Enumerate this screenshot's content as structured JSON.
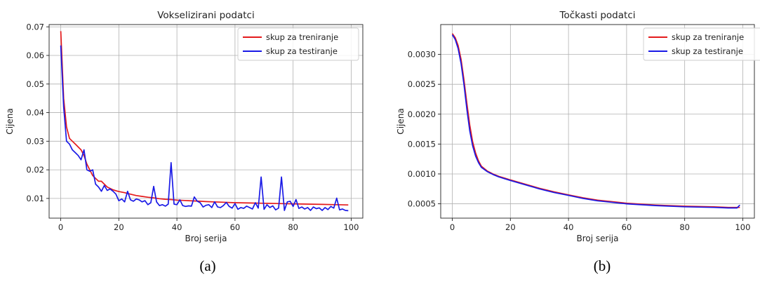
{
  "captions": [
    "(a)",
    "(b)"
  ],
  "colors": {
    "train": "#e41a1c",
    "test": "#1a1ae6",
    "grid": "#b0b0b0"
  },
  "chart_data": [
    {
      "type": "line",
      "title": "Vokselizirani podatci",
      "xlabel": "Broj serija",
      "ylabel": "Cijena",
      "xlim": [
        -4,
        104
      ],
      "ylim": [
        0.0031,
        0.0708
      ],
      "xticks": [
        0,
        20,
        40,
        60,
        80,
        100
      ],
      "yticks": [
        0.01,
        0.02,
        0.03,
        0.04,
        0.05,
        0.06,
        0.07
      ],
      "xtick_labels": [
        "0",
        "20",
        "40",
        "60",
        "80",
        "100"
      ],
      "ytick_labels": [
        "0.01",
        "0.02",
        "0.03",
        "0.04",
        "0.05",
        "0.06",
        "0.07"
      ],
      "grid": true,
      "legend": "top-right",
      "series": [
        {
          "name": "skup za treniranje",
          "color": "#e41a1c",
          "x": [
            0,
            1,
            2,
            3,
            4,
            5,
            6,
            7,
            8,
            9,
            10,
            11,
            12,
            13,
            14,
            15,
            16,
            17,
            18,
            19,
            20,
            22,
            24,
            26,
            28,
            30,
            32,
            34,
            36,
            38,
            40,
            42,
            44,
            46,
            48,
            50,
            55,
            60,
            65,
            70,
            75,
            80,
            85,
            90,
            95,
            99
          ],
          "y": [
            0.0685,
            0.045,
            0.035,
            0.031,
            0.03,
            0.029,
            0.028,
            0.027,
            0.025,
            0.022,
            0.02,
            0.018,
            0.017,
            0.016,
            0.016,
            0.015,
            0.014,
            0.0135,
            0.013,
            0.0127,
            0.0124,
            0.012,
            0.0115,
            0.011,
            0.0107,
            0.0104,
            0.0102,
            0.0099,
            0.0097,
            0.0096,
            0.0094,
            0.0093,
            0.0092,
            0.0091,
            0.009,
            0.0089,
            0.0087,
            0.0085,
            0.0084,
            0.0083,
            0.0082,
            0.0081,
            0.008,
            0.0079,
            0.0078,
            0.0077
          ]
        },
        {
          "name": "skup za testiranje",
          "color": "#1a1ae6",
          "x": [
            0,
            1,
            2,
            3,
            4,
            5,
            6,
            7,
            8,
            9,
            10,
            11,
            12,
            13,
            14,
            15,
            16,
            17,
            18,
            19,
            20,
            21,
            22,
            23,
            24,
            25,
            26,
            27,
            28,
            29,
            30,
            31,
            32,
            33,
            34,
            35,
            36,
            37,
            38,
            39,
            40,
            41,
            42,
            43,
            44,
            45,
            46,
            47,
            48,
            49,
            50,
            51,
            52,
            53,
            54,
            55,
            56,
            57,
            58,
            59,
            60,
            61,
            62,
            63,
            64,
            65,
            66,
            67,
            68,
            69,
            70,
            71,
            72,
            73,
            74,
            75,
            76,
            77,
            78,
            79,
            80,
            81,
            82,
            83,
            84,
            85,
            86,
            87,
            88,
            89,
            90,
            91,
            92,
            93,
            94,
            95,
            96,
            97,
            98,
            99
          ],
          "y": [
            0.0635,
            0.042,
            0.03,
            0.029,
            0.027,
            0.026,
            0.025,
            0.0235,
            0.027,
            0.02,
            0.0195,
            0.02,
            0.015,
            0.014,
            0.0125,
            0.0145,
            0.0128,
            0.0133,
            0.0125,
            0.0115,
            0.0092,
            0.0098,
            0.0088,
            0.0125,
            0.0095,
            0.009,
            0.0098,
            0.0095,
            0.0088,
            0.0092,
            0.0078,
            0.0085,
            0.0142,
            0.0088,
            0.0075,
            0.0078,
            0.0073,
            0.008,
            0.0225,
            0.008,
            0.0078,
            0.0095,
            0.0075,
            0.0072,
            0.0074,
            0.0073,
            0.0105,
            0.009,
            0.0085,
            0.007,
            0.0076,
            0.0078,
            0.0068,
            0.0088,
            0.007,
            0.0068,
            0.0075,
            0.0086,
            0.0072,
            0.0066,
            0.0082,
            0.0062,
            0.0068,
            0.0065,
            0.0073,
            0.0068,
            0.0063,
            0.0085,
            0.0066,
            0.0175,
            0.0062,
            0.0078,
            0.0068,
            0.0074,
            0.006,
            0.0066,
            0.0175,
            0.0058,
            0.0088,
            0.009,
            0.0072,
            0.0096,
            0.0065,
            0.007,
            0.0063,
            0.0068,
            0.0058,
            0.007,
            0.0064,
            0.0067,
            0.0058,
            0.0068,
            0.0061,
            0.0072,
            0.0066,
            0.0101,
            0.006,
            0.0063,
            0.0058,
            0.0057
          ]
        }
      ]
    },
    {
      "type": "line",
      "title": "Točkasti podatci",
      "xlabel": "Broj serija",
      "ylabel": "Cijena",
      "xlim": [
        -4,
        104
      ],
      "ylim": [
        0.00026,
        0.0035
      ],
      "xticks": [
        0,
        20,
        40,
        60,
        80,
        100
      ],
      "yticks": [
        0.0005,
        0.001,
        0.0015,
        0.002,
        0.0025,
        0.003
      ],
      "xtick_labels": [
        "0",
        "20",
        "40",
        "60",
        "80",
        "100"
      ],
      "ytick_labels": [
        "0.0005",
        "0.0010",
        "0.0015",
        "0.0020",
        "0.0025",
        "0.0030"
      ],
      "grid": true,
      "legend": "top-right",
      "series": [
        {
          "name": "skup za treniranje",
          "color": "#e41a1c",
          "x": [
            0,
            1,
            2,
            3,
            4,
            5,
            6,
            7,
            8,
            9,
            10,
            12,
            14,
            16,
            18,
            20,
            25,
            30,
            35,
            40,
            45,
            50,
            60,
            70,
            80,
            90,
            95,
            99
          ],
          "y": [
            0.00335,
            0.00328,
            0.00315,
            0.00292,
            0.00258,
            0.00218,
            0.00182,
            0.00154,
            0.00135,
            0.00122,
            0.00113,
            0.00105,
            0.001,
            0.00096,
            0.00093,
            0.0009,
            0.00083,
            0.00076,
            0.0007,
            0.00065,
            0.0006,
            0.00056,
            0.00051,
            0.00048,
            0.00046,
            0.00045,
            0.00044,
            0.00044
          ]
        },
        {
          "name": "skup za testiranje",
          "color": "#1a1ae6",
          "x": [
            0,
            1,
            2,
            3,
            4,
            5,
            6,
            7,
            8,
            9,
            10,
            12,
            14,
            16,
            18,
            20,
            25,
            30,
            35,
            40,
            45,
            50,
            60,
            70,
            80,
            90,
            95,
            98,
            99
          ],
          "y": [
            0.00333,
            0.00325,
            0.0031,
            0.00285,
            0.0025,
            0.00208,
            0.00172,
            0.00147,
            0.0013,
            0.00119,
            0.00111,
            0.00104,
            0.00099,
            0.00095,
            0.00092,
            0.00089,
            0.00082,
            0.00075,
            0.00069,
            0.00064,
            0.00059,
            0.00055,
            0.0005,
            0.00047,
            0.00045,
            0.00044,
            0.00043,
            0.00043,
            0.00048
          ]
        }
      ]
    }
  ]
}
